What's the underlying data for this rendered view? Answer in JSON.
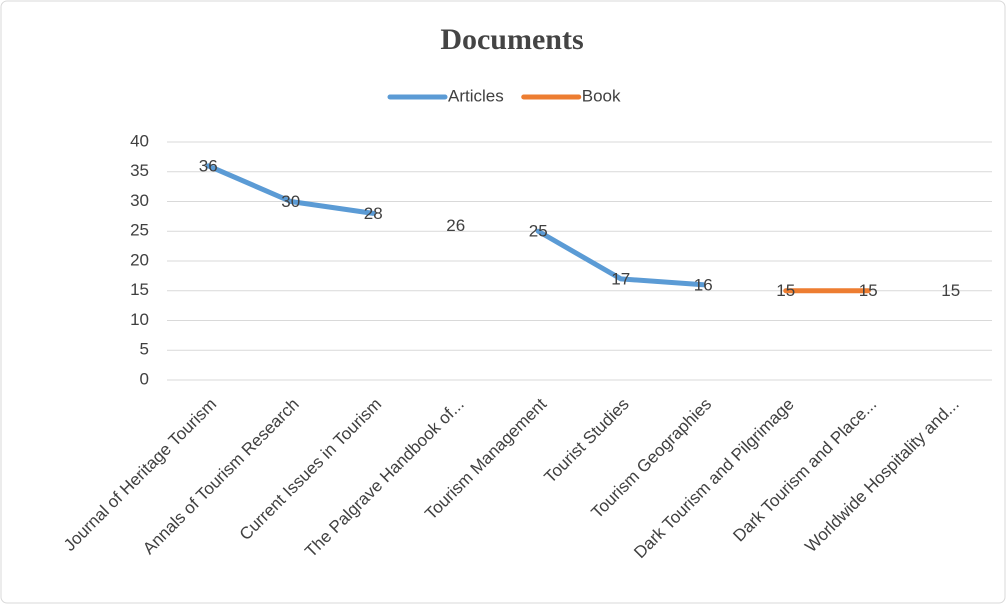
{
  "chart_data": {
    "type": "line",
    "title": "Documents",
    "categories": [
      "Journal of Heritage Tourism",
      "Annals of Tourism Research",
      "Current Issues in Tourism",
      "The Palgrave Handbook of...",
      "Tourism Management",
      "Tourist Studies",
      "Tourism Geographies",
      "Dark Tourism and Pilgrimage",
      "Dark Tourism and Place...",
      "Worldwide Hospitality and..."
    ],
    "series": [
      {
        "name": "Articles",
        "color": "#5b9bd5",
        "values": [
          36,
          30,
          28,
          null,
          25,
          17,
          16,
          null,
          null,
          15
        ]
      },
      {
        "name": "Book",
        "color": "#ed7d31",
        "values": [
          null,
          null,
          null,
          26,
          null,
          null,
          null,
          15,
          15,
          null
        ]
      }
    ],
    "ylim": [
      0,
      40
    ],
    "yticks": [
      0,
      5,
      10,
      15,
      20,
      25,
      30,
      35,
      40
    ],
    "grid": true,
    "legend": "top"
  }
}
